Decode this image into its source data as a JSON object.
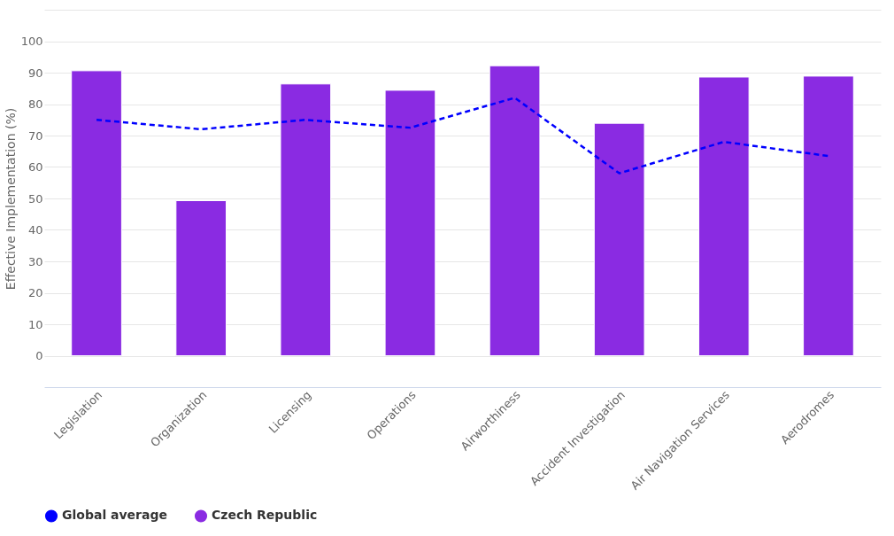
{
  "chart_data": {
    "type": "bar",
    "ylabel": "Effective Implementation (%)",
    "categories": [
      "Legislation",
      "Organization",
      "Licensing",
      "Operations",
      "Airworthiness",
      "Accident Investigation",
      "Air Navigation Services",
      "Aerodromes"
    ],
    "series": [
      {
        "name": "Global average",
        "type": "line",
        "color": "#0000ff",
        "line_style": "dashed",
        "marker": "none",
        "values": [
          75,
          72,
          75,
          72.5,
          82,
          58,
          68,
          63.5
        ]
      },
      {
        "name": "Czech Republic",
        "color": "#8a2be2",
        "values": [
          90.6,
          49.3,
          86.4,
          84.4,
          92.2,
          73.9,
          88.6,
          88.9
        ]
      }
    ],
    "ylim": [
      -10,
      110
    ],
    "yticks": [
      0,
      10,
      20,
      30,
      40,
      50,
      60,
      70,
      80,
      90,
      100,
      {
        "value": 110,
        "label": null
      }
    ],
    "grid": "y",
    "legend": "bottom"
  }
}
